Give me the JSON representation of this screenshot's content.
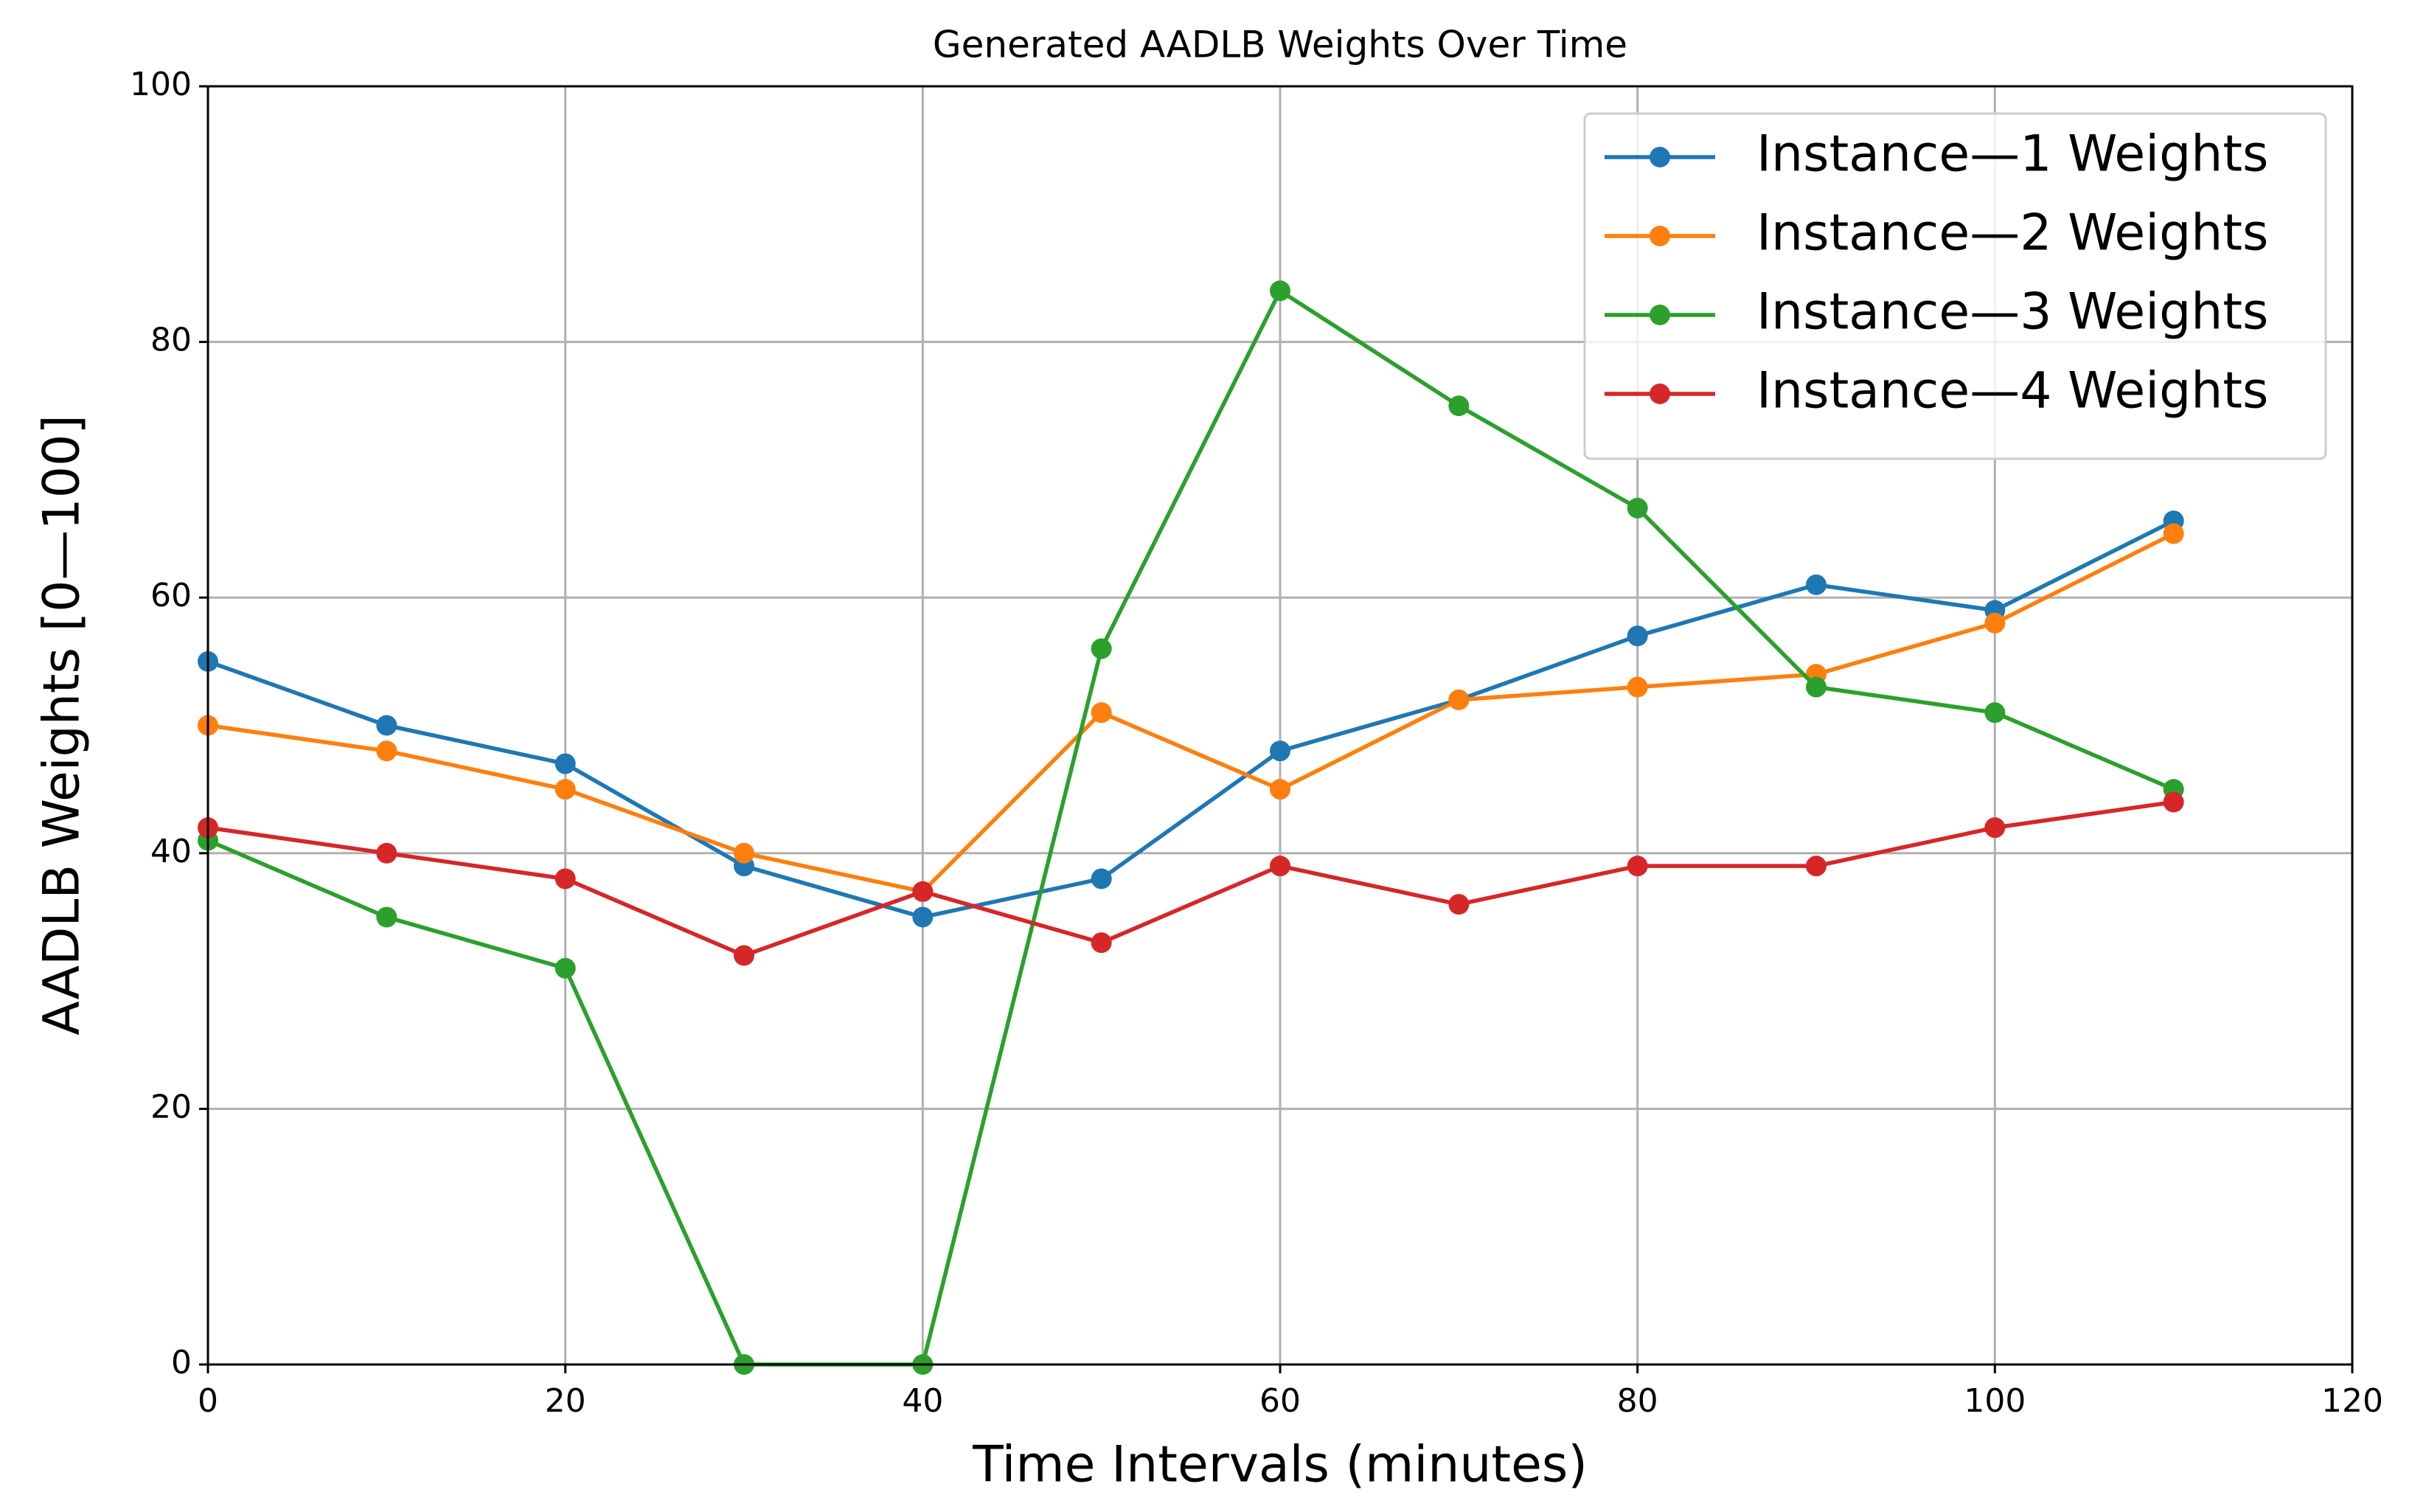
{
  "chart_data": {
    "type": "line",
    "title": "Generated AADLB Weights Over Time",
    "x_label": "Time Intervals (minutes)",
    "y_label": "AADLB Weights [0—100]",
    "x": [
      0,
      10,
      20,
      30,
      40,
      50,
      60,
      70,
      80,
      90,
      100,
      110
    ],
    "series": [
      {
        "name": "Instance—1 Weights",
        "color": "#1f77b4",
        "values": [
          55,
          50,
          47,
          39,
          35,
          38,
          48,
          52,
          57,
          61,
          59,
          66
        ]
      },
      {
        "name": "Instance—2 Weights",
        "color": "#ff7f0e",
        "values": [
          50,
          48,
          45,
          40,
          37,
          51,
          45,
          52,
          53,
          54,
          58,
          65
        ]
      },
      {
        "name": "Instance—3 Weights",
        "color": "#2ca02c",
        "values": [
          41,
          35,
          31,
          0,
          0,
          56,
          84,
          75,
          67,
          53,
          51,
          45
        ]
      },
      {
        "name": "Instance—4 Weights",
        "color": "#d62728",
        "values": [
          42,
          40,
          38,
          32,
          37,
          33,
          39,
          36,
          39,
          39,
          42,
          44
        ]
      }
    ],
    "xlim": [
      0,
      120
    ],
    "xticks": [
      0,
      20,
      40,
      60,
      80,
      100,
      120
    ],
    "ylim": [
      0,
      100
    ],
    "yticks": [
      0,
      20,
      40,
      60,
      80,
      100
    ],
    "grid": true,
    "legend": "upper-right"
  }
}
